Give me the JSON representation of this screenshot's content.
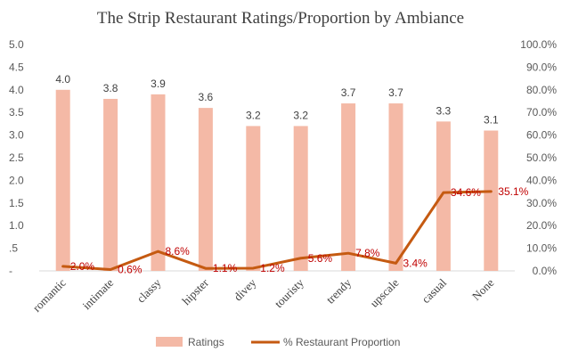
{
  "chart_data": {
    "type": "bar",
    "title": "The Strip Restaurant Ratings/Proportion by Ambiance",
    "categories": [
      "romantic",
      "intimate",
      "classy",
      "hipster",
      "divey",
      "touristy",
      "trendy",
      "upscale",
      "casual",
      "None"
    ],
    "series": [
      {
        "name": "Ratings",
        "type": "bar",
        "axis": "left",
        "color": "#f4b9a6",
        "values": [
          4.0,
          3.8,
          3.9,
          3.6,
          3.2,
          3.2,
          3.7,
          3.7,
          3.3,
          3.1
        ],
        "labels": [
          "4.0",
          "3.8",
          "3.9",
          "3.6",
          "3.2",
          "3.2",
          "3.7",
          "3.7",
          "3.3",
          "3.1"
        ]
      },
      {
        "name": "% Restaurant Proportion",
        "type": "line",
        "axis": "right",
        "color": "#c55a11",
        "label_color": "#c00000",
        "values": [
          2.0,
          0.6,
          8.6,
          1.1,
          1.2,
          5.6,
          7.8,
          3.4,
          34.6,
          35.1
        ],
        "labels": [
          "2.0%",
          "0.6%",
          "8.6%",
          "1.1%",
          "1.2%",
          "5.6%",
          "7.8%",
          "3.4%",
          "34.6%",
          "35.1%"
        ]
      }
    ],
    "y_left": {
      "ylim": [
        0,
        5
      ],
      "ticks": [
        0,
        0.5,
        1,
        1.5,
        2,
        2.5,
        3,
        3.5,
        4,
        4.5,
        5
      ],
      "tick_labels": [
        "-",
        ".5",
        "1.0",
        "1.5",
        "2.0",
        "2.5",
        "3.0",
        "3.5",
        "4.0",
        "4.5",
        "5.0"
      ]
    },
    "y_right": {
      "ylim": [
        0,
        100
      ],
      "ticks": [
        0,
        10,
        20,
        30,
        40,
        50,
        60,
        70,
        80,
        90,
        100
      ],
      "tick_labels": [
        "0.0%",
        "10.0%",
        "20.0%",
        "30.0%",
        "40.0%",
        "50.0%",
        "60.0%",
        "70.0%",
        "80.0%",
        "90.0%",
        "100.0%"
      ]
    },
    "grid": false,
    "legend": {
      "position": "bottom",
      "entries": [
        "Ratings",
        "% Restaurant Proportion"
      ]
    }
  }
}
